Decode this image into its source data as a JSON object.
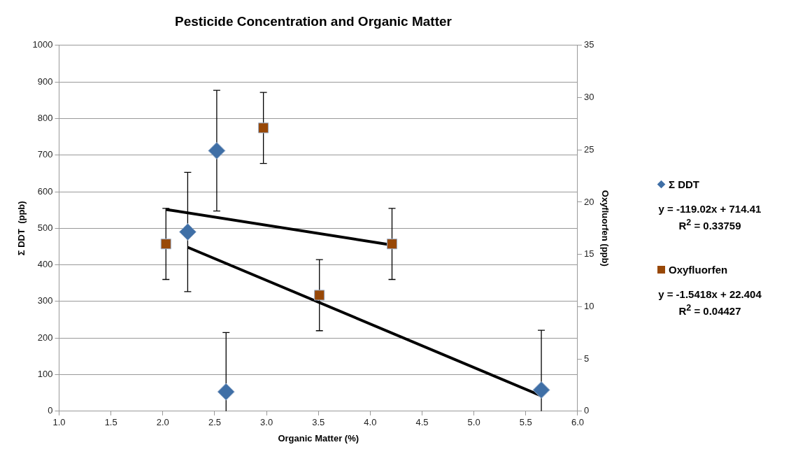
{
  "chart_data": {
    "type": "scatter",
    "title": "Pesticide Concentration and Organic Matter",
    "xlabel": "Organic Matter (%)",
    "ylabel": "Σ DDT  (ppb)",
    "y2label": "Oxyfluorfen (ppb)",
    "xlim": [
      1,
      6
    ],
    "xticks": [
      {
        "value": 1,
        "label": "1.0"
      },
      {
        "value": 1.5,
        "label": "1.5"
      },
      {
        "value": 2,
        "label": "2.0"
      },
      {
        "value": 2.5,
        "label": "2.5"
      },
      {
        "value": 3,
        "label": "3.0"
      },
      {
        "value": 3.5,
        "label": "3.5"
      },
      {
        "value": 4,
        "label": "4.0"
      },
      {
        "value": 4.5,
        "label": "4.5"
      },
      {
        "value": 5,
        "label": "5.0"
      },
      {
        "value": 5.5,
        "label": "5.5"
      },
      {
        "value": 6,
        "label": "6.0"
      }
    ],
    "ylim": [
      0,
      1000
    ],
    "yticks": [
      0,
      100,
      200,
      300,
      400,
      500,
      600,
      700,
      800,
      900,
      1000
    ],
    "y2lim": [
      0,
      35
    ],
    "y2ticks": [
      0,
      5,
      10,
      15,
      20,
      25,
      30,
      35
    ],
    "grid": "y",
    "legend": "right",
    "series": [
      {
        "name": "Σ DDT",
        "color": "#3f6fa6",
        "marker": "diamond",
        "x": [
          2.24,
          2.52,
          2.61,
          5.65
        ],
        "values": [
          490,
          712,
          53,
          58
        ],
        "errors": [
          163,
          165,
          [
            0,
            215
          ],
          [
            0,
            221
          ]
        ]
      },
      {
        "name": "Oxyfluorfen",
        "color": "#984807",
        "marker": "square",
        "axis": "y2",
        "x": [
          2.03,
          2.97,
          3.51,
          4.21
        ],
        "values": [
          16,
          27.1,
          11.1,
          16
        ],
        "errors": [
          3.4,
          3.4,
          3.4,
          3.4
        ]
      },
      {
        "type": "line",
        "color": "#000000",
        "marker": "none",
        "x": [
          2.24,
          5.65
        ],
        "values": [
          448,
          42
        ]
      },
      {
        "type": "line",
        "color": "#000000",
        "marker": "none",
        "axis": "y2",
        "x": [
          2.03,
          4.21
        ],
        "values": [
          19.3,
          15.9
        ]
      }
    ],
    "annotations": [
      "y = -119.02x + 714.41",
      "R$^{2}$ = 0.33759",
      "y = -1.5418x + 22.404",
      "R$^{2}$ = 0.04427"
    ]
  }
}
